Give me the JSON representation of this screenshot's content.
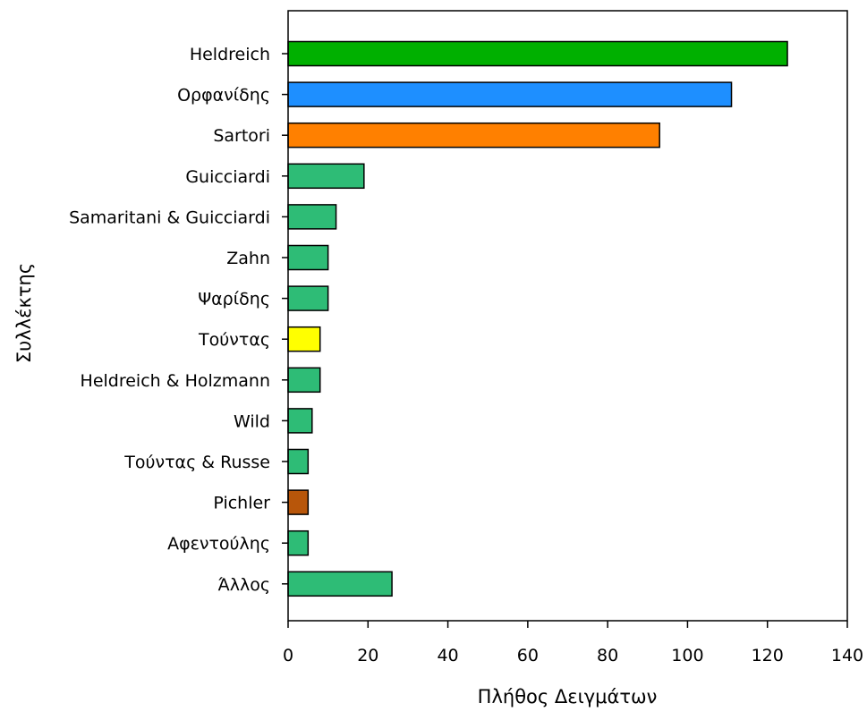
{
  "chart_data": {
    "type": "bar",
    "orientation": "horizontal",
    "xlabel": "Πλήθος Δειγμάτων",
    "ylabel": "Συλλέκτης",
    "xlim": [
      0,
      140
    ],
    "xticks": [
      0,
      20,
      40,
      60,
      80,
      100,
      120,
      140
    ],
    "grid": false,
    "categories": [
      "Heldreich",
      "Ορφανίδης",
      "Sartori",
      "Guicciardi",
      "Samaritani & Guicciardi",
      "Zahn",
      "Ψαρίδης",
      "Τούντας",
      "Heldreich & Holzmann",
      "Wild",
      "Τούντας & Russe",
      "Pichler",
      "Αφεντούλης",
      "Άλλος"
    ],
    "values": [
      125,
      111,
      93,
      19,
      12,
      10,
      10,
      8,
      8,
      6,
      5,
      5,
      5,
      26
    ],
    "colors": [
      "#00b000",
      "#1e8fff",
      "#ff8000",
      "#2ebc76",
      "#2ebc76",
      "#2ebc76",
      "#2ebc76",
      "#ffff00",
      "#2ebc76",
      "#2ebc76",
      "#2ebc76",
      "#b8560a",
      "#2ebc76",
      "#2ebc76"
    ]
  }
}
